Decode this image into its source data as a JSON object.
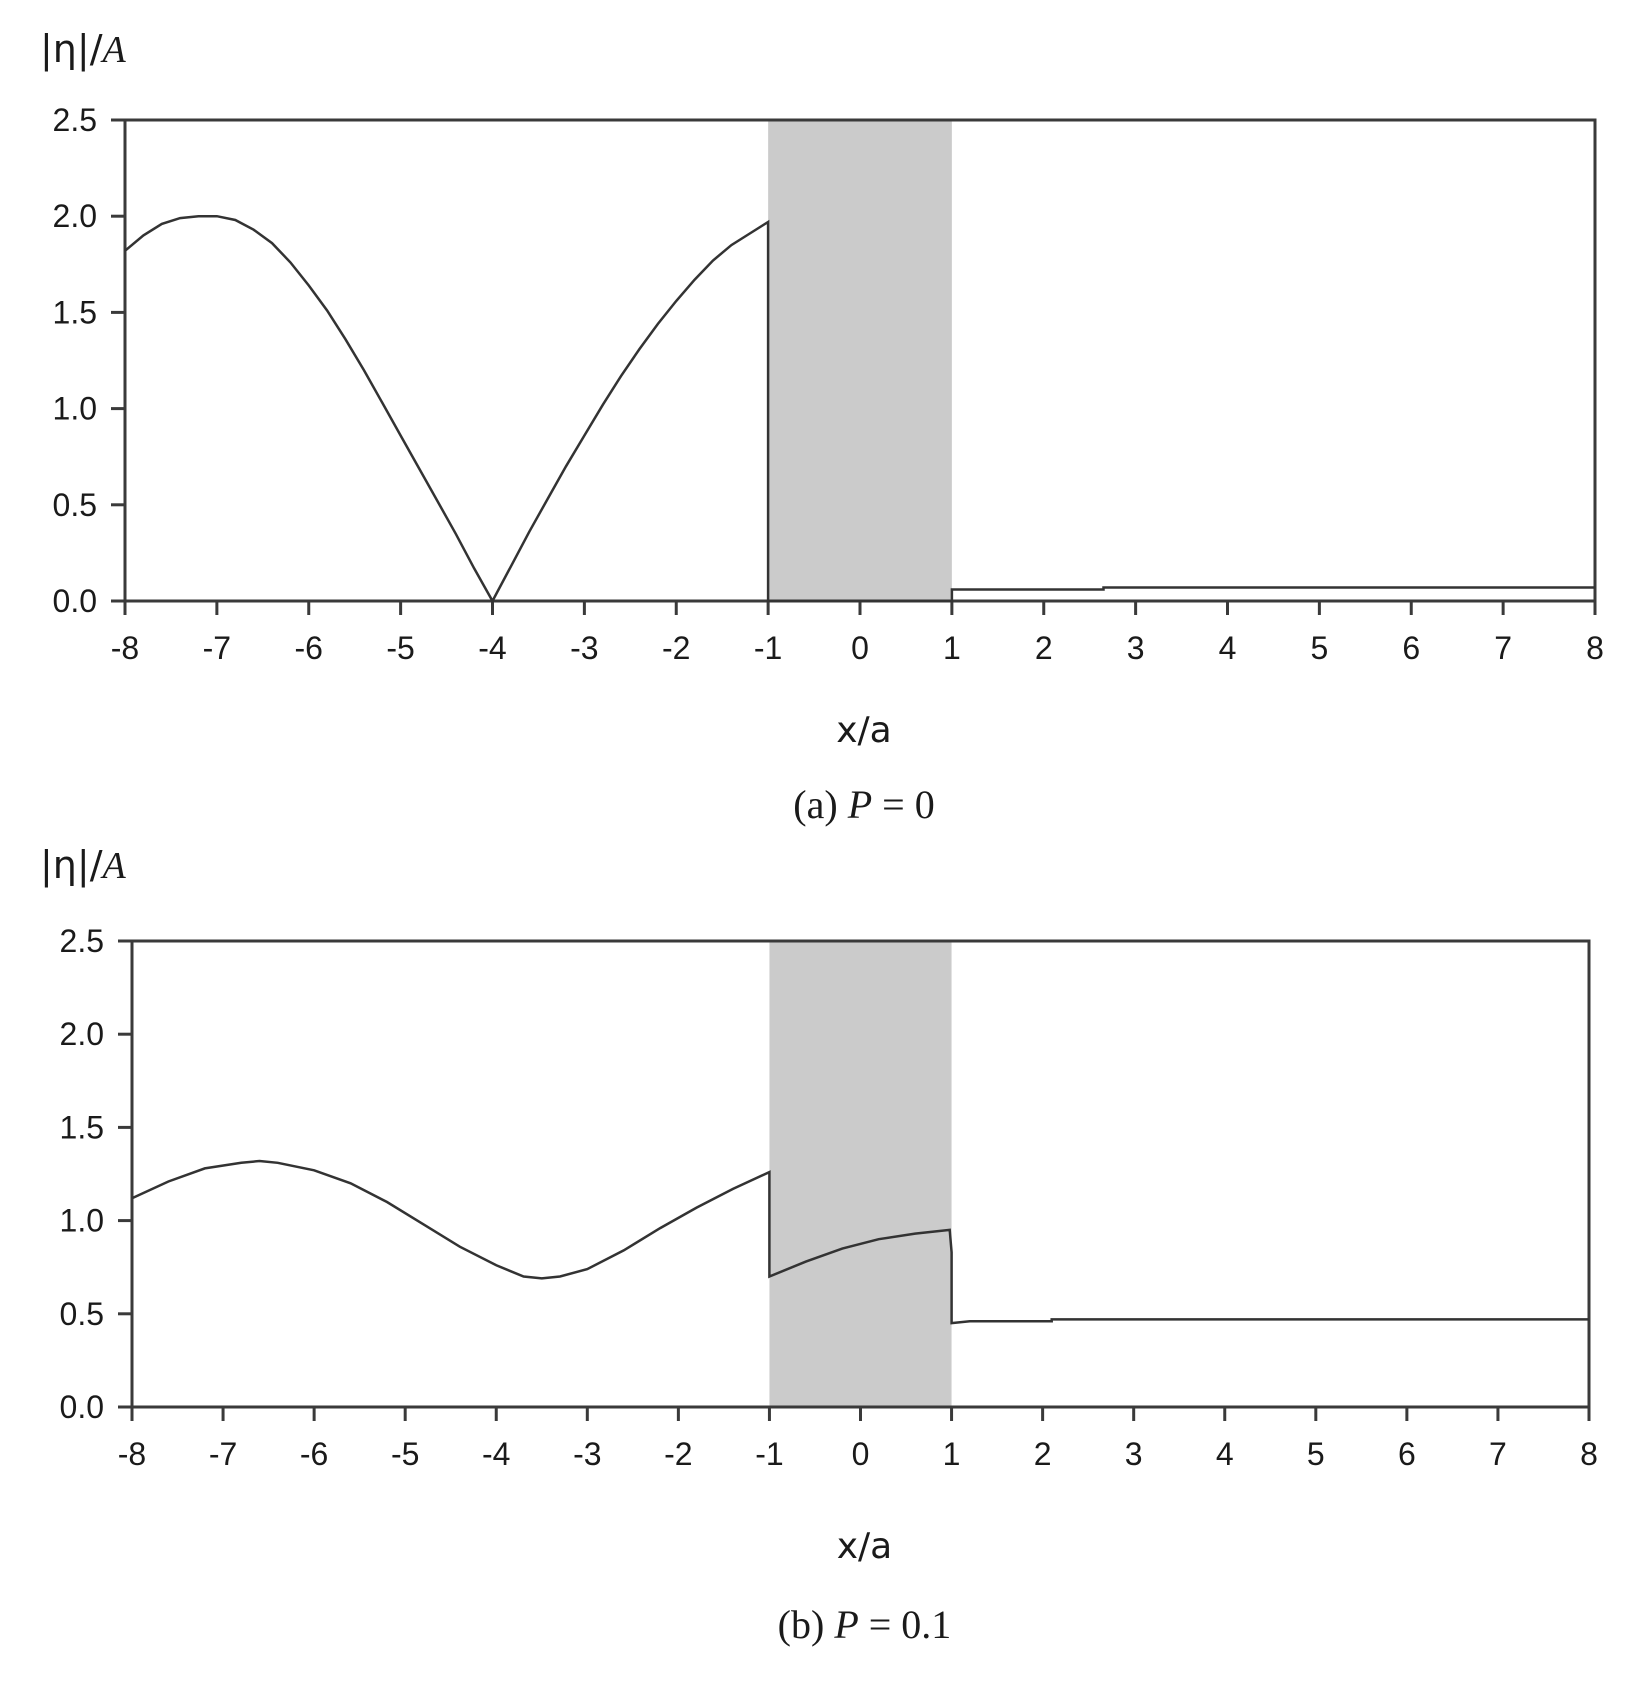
{
  "figure": {
    "panels": [
      {
        "id": "a",
        "caption_prefix": "(a)",
        "caption_param": "P",
        "caption_eq": " = 0",
        "ylabel_main": "|η|/",
        "ylabel_var": "A",
        "xlabel": "x/a"
      },
      {
        "id": "b",
        "caption_prefix": "(b)",
        "caption_param": "P",
        "caption_eq": " = 0.1",
        "ylabel_main": "|η|/",
        "ylabel_var": "A",
        "xlabel": "x/a"
      }
    ],
    "colors": {
      "axis": "#3a3a3a",
      "curve": "#333333",
      "shaded_region": "#cbcbcb",
      "background": "#ffffff"
    }
  },
  "chart_data": [
    {
      "type": "line",
      "title": "(a) P = 0",
      "xlabel": "x/a",
      "ylabel": "|η|/A",
      "xlim": [
        -8,
        8
      ],
      "ylim": [
        0,
        2.5
      ],
      "xticks": [
        "-8",
        "-7",
        "-6",
        "-5",
        "-4",
        "-3",
        "-2",
        "-1",
        "0",
        "1",
        "2",
        "3",
        "4",
        "5",
        "6",
        "7",
        "8"
      ],
      "yticks": [
        "0.0",
        "0.5",
        "1.0",
        "1.5",
        "2.0",
        "2.5"
      ],
      "grid": false,
      "shaded_region": {
        "x": [
          -1,
          1
        ],
        "color": "#cbcbcb"
      },
      "series": [
        {
          "name": "|η|/A",
          "x": [
            -8,
            -7.8,
            -7.6,
            -7.4,
            -7.2,
            -7.1,
            -7.0,
            -6.8,
            -6.6,
            -6.4,
            -6.2,
            -6.0,
            -5.8,
            -5.6,
            -5.4,
            -5.2,
            -5.0,
            -4.8,
            -4.6,
            -4.4,
            -4.2,
            -4.0,
            -3.8,
            -3.6,
            -3.4,
            -3.2,
            -3.0,
            -2.8,
            -2.6,
            -2.4,
            -2.2,
            -2.0,
            -1.8,
            -1.6,
            -1.4,
            -1.2,
            -1.0,
            -1.0,
            1.0,
            1.0,
            2.65,
            2.65,
            8.0
          ],
          "y": [
            1.82,
            1.9,
            1.96,
            1.99,
            2.0,
            2.0,
            2.0,
            1.98,
            1.93,
            1.86,
            1.76,
            1.64,
            1.51,
            1.36,
            1.2,
            1.03,
            0.86,
            0.69,
            0.52,
            0.35,
            0.17,
            0.0,
            0.18,
            0.36,
            0.53,
            0.7,
            0.86,
            1.02,
            1.17,
            1.31,
            1.44,
            1.56,
            1.67,
            1.77,
            1.85,
            1.91,
            1.97,
            0.0,
            0.0,
            0.06,
            0.06,
            0.07,
            0.07
          ]
        }
      ]
    },
    {
      "type": "line",
      "title": "(b) P = 0.1",
      "xlabel": "x/a",
      "ylabel": "|η|/A",
      "xlim": [
        -8,
        8
      ],
      "ylim": [
        0,
        2.5
      ],
      "xticks": [
        "-8",
        "-7",
        "-6",
        "-5",
        "-4",
        "-3",
        "-2",
        "-1",
        "0",
        "1",
        "2",
        "3",
        "4",
        "5",
        "6",
        "7",
        "8"
      ],
      "yticks": [
        "0.0",
        "0.5",
        "1.0",
        "1.5",
        "2.0",
        "2.5"
      ],
      "grid": false,
      "shaded_region": {
        "x": [
          -1,
          1
        ],
        "color": "#cbcbcb"
      },
      "series": [
        {
          "name": "|η|/A",
          "x": [
            -8,
            -7.6,
            -7.2,
            -6.8,
            -6.6,
            -6.4,
            -6.0,
            -5.6,
            -5.2,
            -4.8,
            -4.4,
            -4.0,
            -3.7,
            -3.5,
            -3.3,
            -3.0,
            -2.6,
            -2.2,
            -1.8,
            -1.4,
            -1.0,
            -1.0,
            -0.6,
            -0.2,
            0.2,
            0.6,
            0.98,
            1.0,
            1.0,
            1.2,
            2.1,
            2.1,
            8.0
          ],
          "y": [
            1.12,
            1.21,
            1.28,
            1.31,
            1.32,
            1.31,
            1.27,
            1.2,
            1.1,
            0.98,
            0.86,
            0.76,
            0.7,
            0.69,
            0.7,
            0.74,
            0.84,
            0.96,
            1.07,
            1.17,
            1.26,
            0.7,
            0.78,
            0.85,
            0.9,
            0.93,
            0.95,
            0.83,
            0.45,
            0.46,
            0.46,
            0.47,
            0.47
          ]
        }
      ]
    }
  ]
}
